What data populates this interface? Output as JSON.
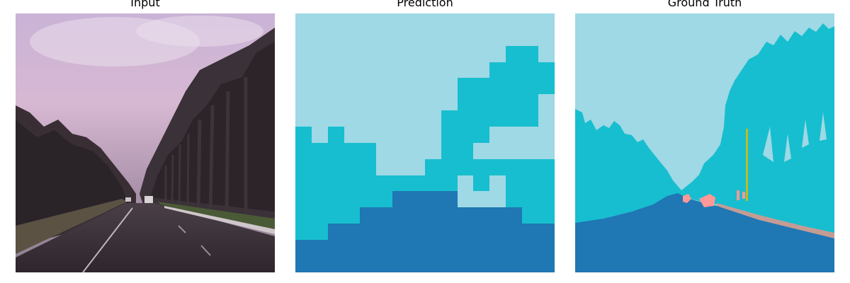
{
  "panels": [
    {
      "title": "Input"
    },
    {
      "title": "Prediction"
    },
    {
      "title": "Ground Truth"
    }
  ],
  "colors": {
    "sky": "#9ed9e5",
    "vegetation": "#17becf",
    "road": "#1f77b4",
    "vehicle": "#ff9896",
    "sidewalk": "#c49c94",
    "pole": "#bcbd22"
  }
}
